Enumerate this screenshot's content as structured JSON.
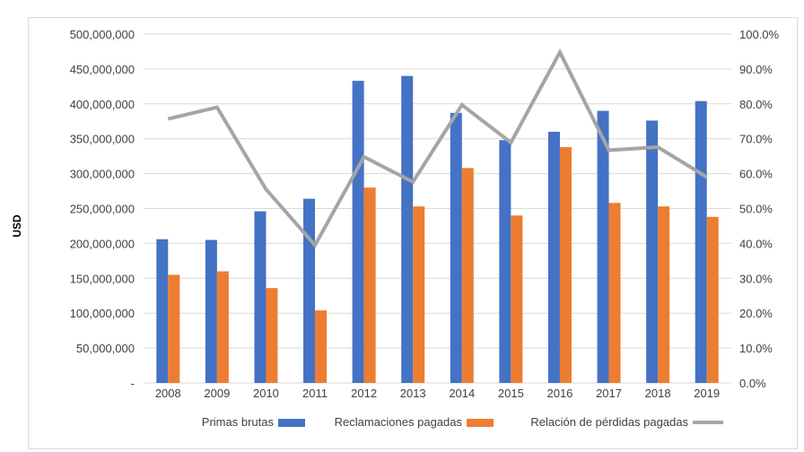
{
  "chart_data": {
    "type": "bar",
    "ylabel": "USD",
    "categories": [
      "2008",
      "2009",
      "2010",
      "2011",
      "2012",
      "2013",
      "2014",
      "2015",
      "2016",
      "2017",
      "2018",
      "2019"
    ],
    "series": [
      {
        "name": "Primas brutas",
        "axis": "left",
        "color": "#4472c4",
        "values": [
          206000000,
          205000000,
          246000000,
          264000000,
          433000000,
          440000000,
          387000000,
          348000000,
          360000000,
          390000000,
          376000000,
          404000000
        ]
      },
      {
        "name": "Reclamaciones pagadas",
        "axis": "left",
        "color": "#ed7d31",
        "values": [
          155000000,
          160000000,
          136000000,
          104000000,
          280000000,
          253000000,
          308000000,
          240000000,
          338000000,
          258000000,
          253000000,
          238000000
        ]
      },
      {
        "name": "Relación de pérdidas pagadas",
        "axis": "right",
        "type": "line",
        "color": "#a5a5a5",
        "values": [
          75.7,
          79.0,
          55.5,
          39.5,
          64.8,
          57.6,
          79.7,
          68.9,
          94.8,
          66.7,
          67.6,
          59.0
        ]
      }
    ],
    "y_left": {
      "min": 0,
      "max": 500000000,
      "tick_labels": [
        "-",
        "50,000,000",
        "100,000,000",
        "150,000,000",
        "200,000,000",
        "250,000,000",
        "300,000,000",
        "350,000,000",
        "400,000,000",
        "450,000,000",
        "500,000,000"
      ]
    },
    "y_right": {
      "min": 0,
      "max": 100,
      "unit": "%",
      "tick_labels": [
        "0.0%",
        "10.0%",
        "20.0%",
        "30.0%",
        "40.0%",
        "50.0%",
        "60.0%",
        "70.0%",
        "80.0%",
        "90.0%",
        "100.0%"
      ]
    },
    "grid": true,
    "legend": "bottom"
  }
}
